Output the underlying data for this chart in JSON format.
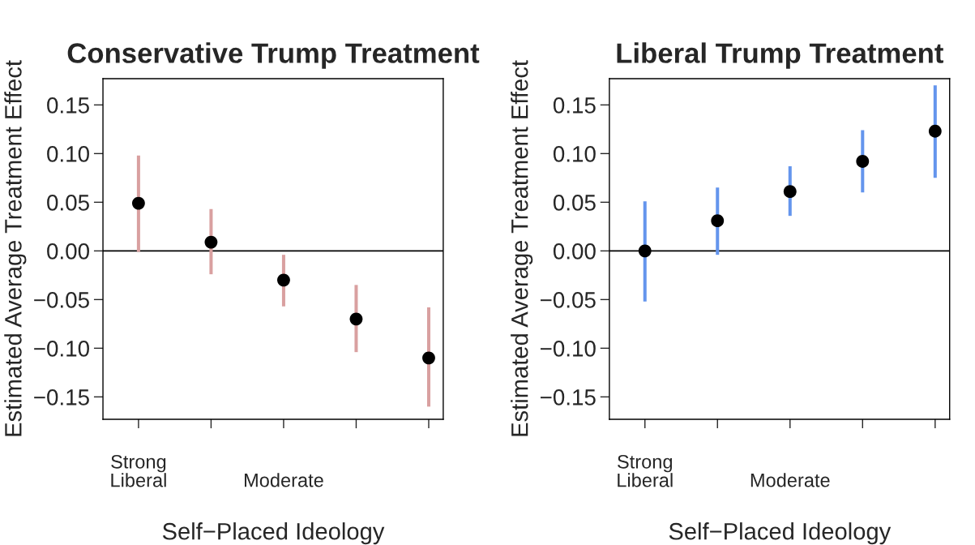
{
  "chart_data": [
    {
      "type": "scatter",
      "title": "Conservative Trump Treatment",
      "xlabel": "Self−Placed Ideology",
      "ylabel": "Estimated Average Treatment Effect",
      "categories": [
        "Strong\nLiberal",
        null,
        "Moderate",
        null,
        null
      ],
      "series": [
        {
          "type": "bar",
          "color": "#d9a0a0",
          "base": [
            -0.001,
            -0.024,
            -0.057,
            -0.104,
            -0.16
          ],
          "values": [
            0.099,
            0.067,
            0.053,
            0.069,
            0.102
          ]
        },
        {
          "color": "#000000",
          "values": [
            0.049,
            0.009,
            -0.03,
            -0.07,
            -0.11
          ]
        }
      ],
      "ylim": [
        -0.173,
        0.177
      ],
      "yticks": [
        {
          "value": -0.15,
          "label": "−0.15"
        },
        {
          "value": -0.1,
          "label": "−0.10"
        },
        {
          "value": -0.05,
          "label": "−0.05"
        },
        {
          "value": 0,
          "label": "0.00"
        },
        {
          "value": 0.05,
          "label": "0.05"
        },
        {
          "value": 0.1,
          "label": "0.10"
        },
        {
          "value": 0.15,
          "label": "0.15"
        }
      ],
      "ref_lines": [
        {
          "axis": "y",
          "value": 0,
          "color": "#000000"
        }
      ],
      "marker": "circle"
    },
    {
      "type": "scatter",
      "title": "Liberal Trump Treatment",
      "xlabel": "Self−Placed Ideology",
      "ylabel": "Estimated Average Treatment Effect",
      "categories": [
        "Strong\nLiberal",
        null,
        "Moderate",
        null,
        null
      ],
      "series": [
        {
          "type": "bar",
          "color": "#6495ed",
          "base": [
            -0.052,
            -0.004,
            0.036,
            0.06,
            0.075
          ],
          "values": [
            0.103,
            0.069,
            0.051,
            0.064,
            0.095
          ]
        },
        {
          "color": "#000000",
          "values": [
            0.0,
            0.031,
            0.061,
            0.092,
            0.123
          ]
        }
      ],
      "ylim": [
        -0.173,
        0.177
      ],
      "yticks": [
        {
          "value": -0.15,
          "label": "−0.15"
        },
        {
          "value": -0.1,
          "label": "−0.10"
        },
        {
          "value": -0.05,
          "label": "−0.05"
        },
        {
          "value": 0,
          "label": "0.00"
        },
        {
          "value": 0.05,
          "label": "0.05"
        },
        {
          "value": 0.1,
          "label": "0.10"
        },
        {
          "value": 0.15,
          "label": "0.15"
        }
      ],
      "ref_lines": [
        {
          "axis": "y",
          "value": 0,
          "color": "#000000"
        }
      ],
      "marker": "circle"
    }
  ]
}
